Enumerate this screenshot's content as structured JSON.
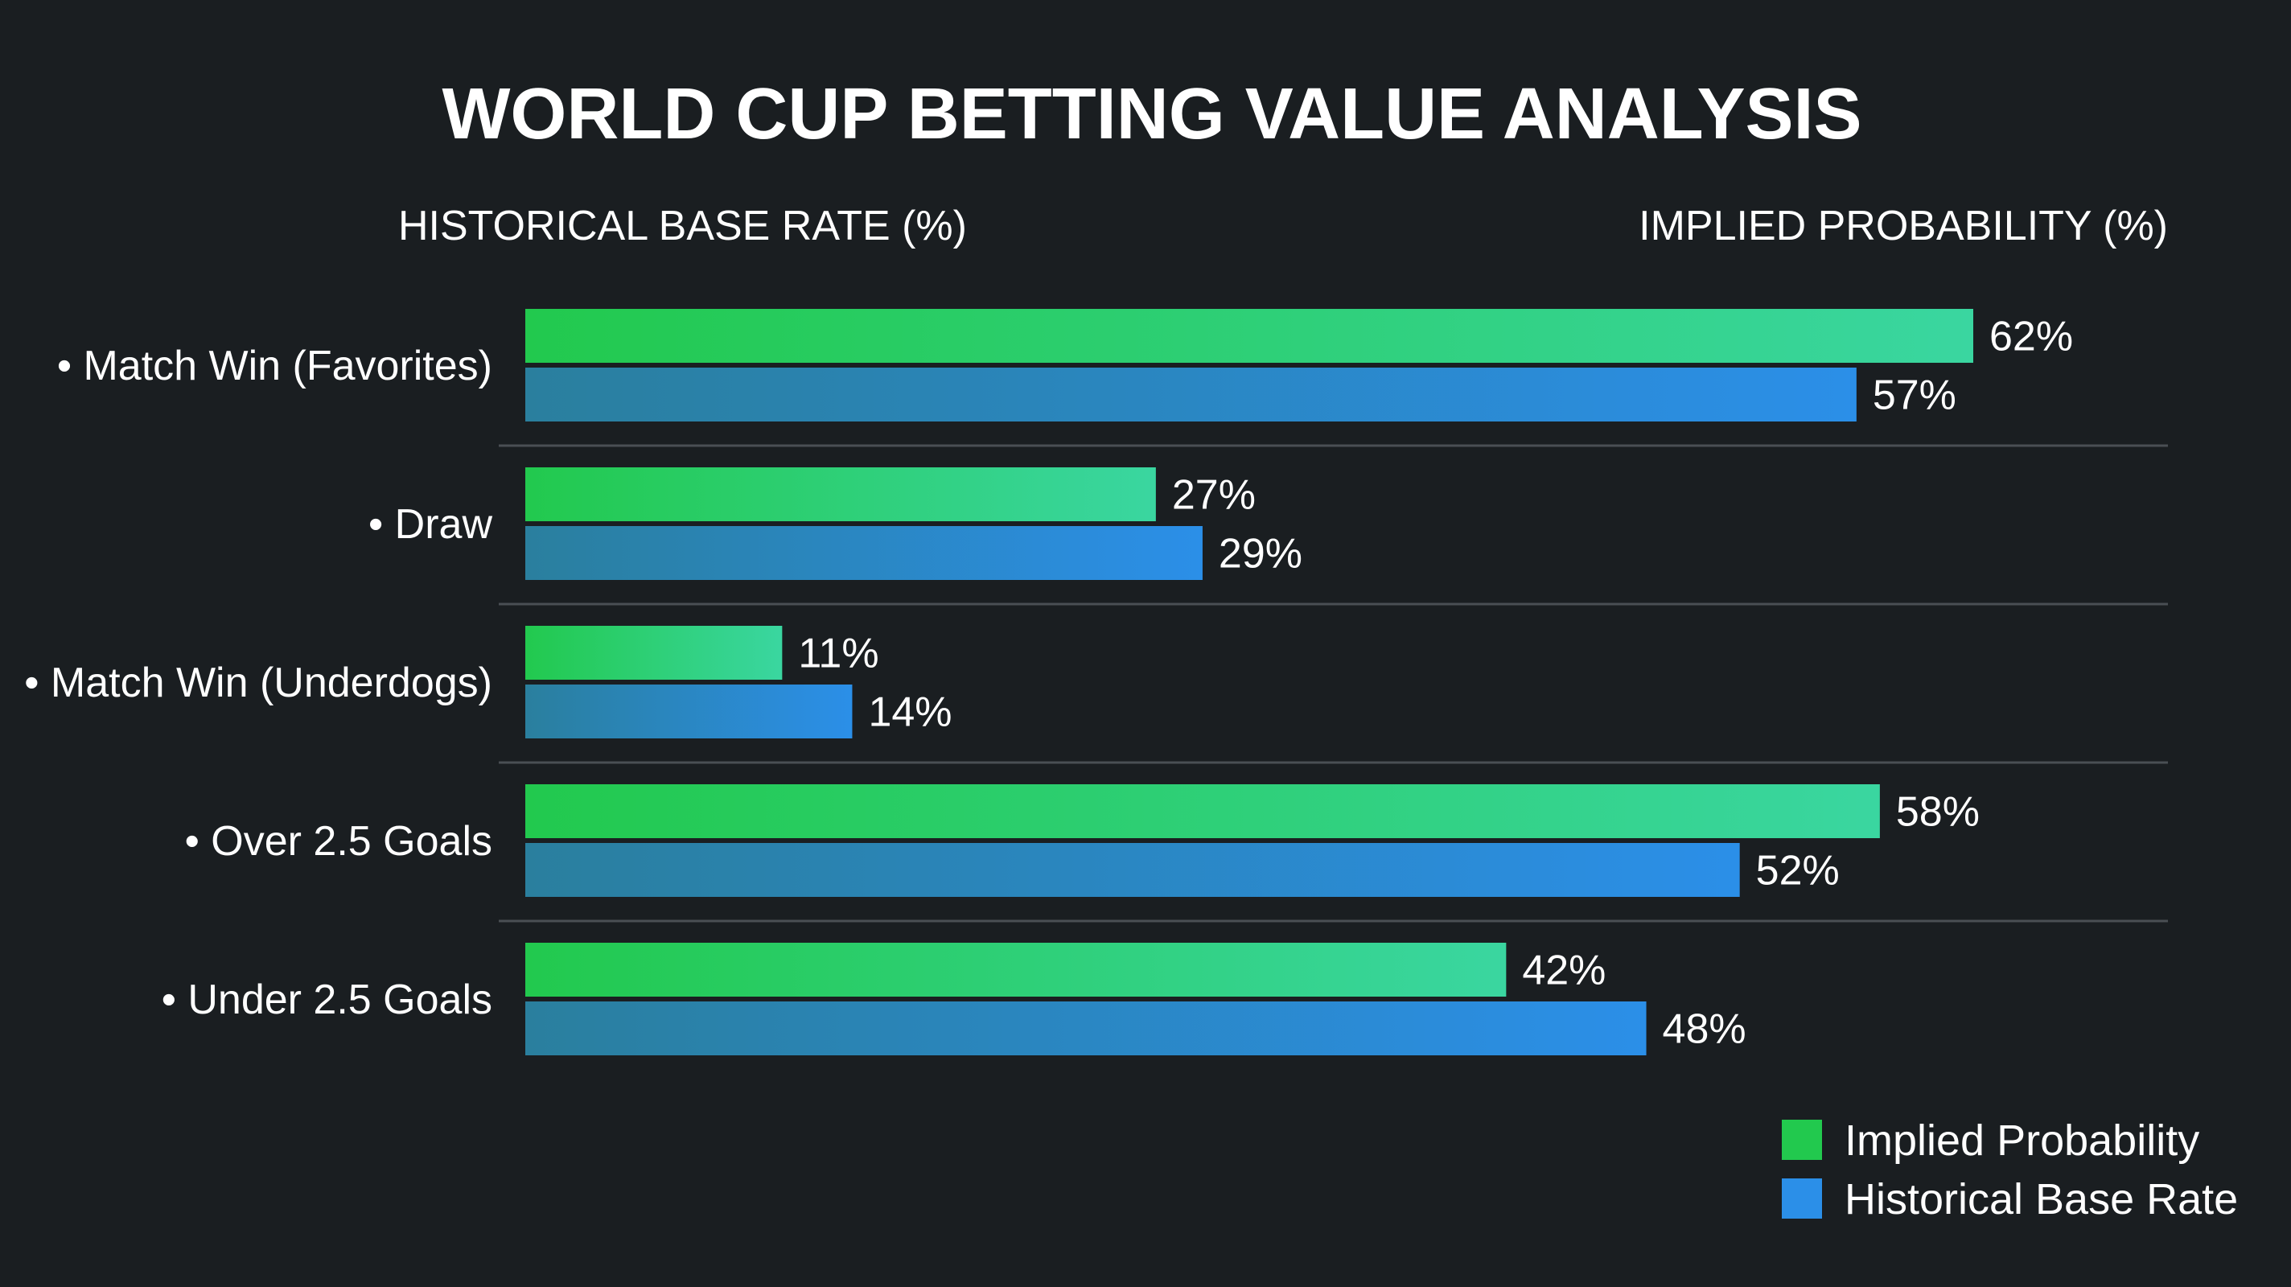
{
  "chart_data": {
    "type": "bar",
    "orientation": "horizontal",
    "title": "WORLD CUP BETTING VALUE ANALYSIS",
    "left_header": "HISTORICAL BASE RATE (%)",
    "right_header": "IMPLIED PROBABILITY (%)",
    "categories": [
      "• Match Win (Favorites)",
      "• Draw",
      "• Match Win (Underdogs)",
      "• Over 2.5 Goals",
      "• Under 2.5 Goals"
    ],
    "series": [
      {
        "name": "Implied Probability",
        "values": [
          62,
          27,
          11,
          58,
          42
        ],
        "labels": [
          "62%",
          "27%",
          "11%",
          "58%",
          "42%"
        ],
        "color_start": "#22c94e",
        "color_end": "#3ad6a0"
      },
      {
        "name": "Historical Base Rate",
        "values": [
          57,
          29,
          14,
          52,
          48
        ],
        "labels": [
          "57%",
          "29%",
          "14%",
          "52%",
          "48%"
        ],
        "color_start": "#2a7f9e",
        "color_end": "#2b8fe8"
      }
    ],
    "xlim": [
      0,
      62
    ],
    "grid": false,
    "legend_position": "bottom-right",
    "background": "#1a1e21"
  }
}
